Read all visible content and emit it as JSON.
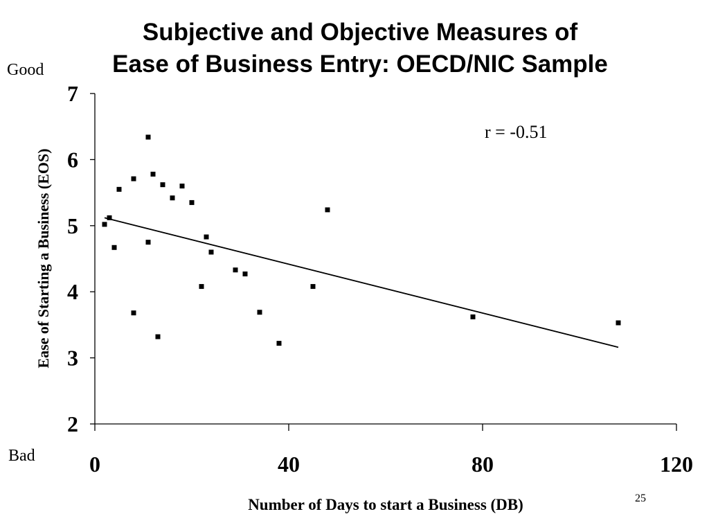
{
  "slide": {
    "title_line1": "Subjective and Objective Measures of",
    "title_line2": "Ease of Business Entry:  OECD/NIC Sample",
    "good_label": "Good",
    "bad_label": "Bad",
    "page_number": "25"
  },
  "chart_data": {
    "type": "scatter",
    "title": "",
    "xlabel": "Number of Days to start a Business (DB)",
    "ylabel": "Ease of Starting a Business (EOS)",
    "xlim": [
      0,
      120
    ],
    "ylim": [
      2,
      7
    ],
    "xticks": [
      0,
      40,
      80,
      120
    ],
    "yticks": [
      2,
      3,
      4,
      5,
      6,
      7
    ],
    "grid": false,
    "legend": "none",
    "annotation": "r = -0.51",
    "marker_color": "#000000",
    "points": [
      {
        "x": 2,
        "y": 5.02
      },
      {
        "x": 3,
        "y": 5.12
      },
      {
        "x": 4,
        "y": 4.67
      },
      {
        "x": 5,
        "y": 5.55
      },
      {
        "x": 8,
        "y": 5.71
      },
      {
        "x": 8,
        "y": 3.68
      },
      {
        "x": 11,
        "y": 6.34
      },
      {
        "x": 11,
        "y": 4.75
      },
      {
        "x": 12,
        "y": 5.78
      },
      {
        "x": 13,
        "y": 3.32
      },
      {
        "x": 14,
        "y": 5.62
      },
      {
        "x": 16,
        "y": 5.42
      },
      {
        "x": 18,
        "y": 5.6
      },
      {
        "x": 20,
        "y": 5.35
      },
      {
        "x": 22,
        "y": 4.08
      },
      {
        "x": 23,
        "y": 4.83
      },
      {
        "x": 24,
        "y": 4.6
      },
      {
        "x": 29,
        "y": 4.33
      },
      {
        "x": 31,
        "y": 4.27
      },
      {
        "x": 34,
        "y": 3.69
      },
      {
        "x": 38,
        "y": 3.22
      },
      {
        "x": 45,
        "y": 4.08
      },
      {
        "x": 48,
        "y": 5.24
      },
      {
        "x": 78,
        "y": 3.62
      },
      {
        "x": 108,
        "y": 3.53
      }
    ],
    "trendline": [
      {
        "x": 2,
        "y": 5.12
      },
      {
        "x": 108,
        "y": 3.16
      }
    ]
  }
}
